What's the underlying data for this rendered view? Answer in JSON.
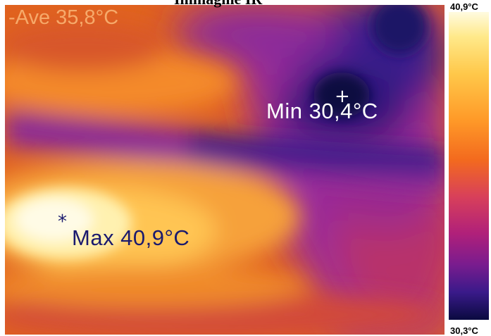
{
  "title": "Immagine IR",
  "thermal_image": {
    "average_label": "-Ave 35,8°C",
    "min_label": "Min 30,4°C",
    "max_label": "Max 40,9°C",
    "min_cursor_symbol": "+",
    "max_cursor_symbol": "*"
  },
  "scale": {
    "max_value": "40,9°C",
    "min_value": "30,3°C",
    "palette": [
      "#0a0a40",
      "#3a1a8a",
      "#7a1c8e",
      "#b0207a",
      "#d8405a",
      "#f36a1e",
      "#ff9a28",
      "#ffc84a",
      "#ffe98a",
      "#fffbe0"
    ]
  }
}
